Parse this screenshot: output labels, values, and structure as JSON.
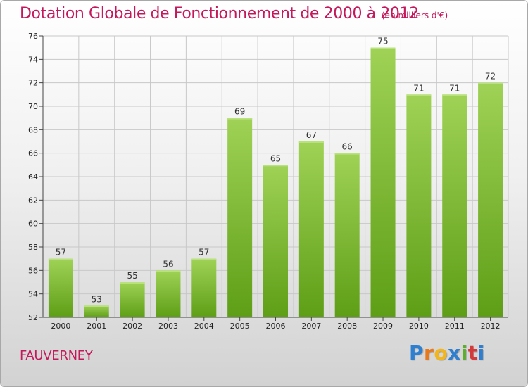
{
  "header": {
    "title": "Dotation Globale de Fonctionnement de 2000 à 2012",
    "unit": "(en milliers d'€)"
  },
  "footer": {
    "commune": "FAUVERNEY",
    "brand": [
      "P",
      "r",
      "o",
      "x",
      "i",
      "t",
      "i"
    ],
    "brand_colors": [
      "#2f7fd0",
      "#e8791b",
      "#f2b51c",
      "#2f7fd0",
      "#5cae2c",
      "#d43a3a",
      "#2f7fd0"
    ]
  },
  "colors": {
    "text_accent": "#c4185a",
    "bar_top": "#9fd256",
    "bar_bottom": "#5e9e16",
    "grid": "#c8c8c8"
  },
  "chart_data": {
    "type": "bar",
    "title": "Dotation Globale de Fonctionnement de 2000 à 2012",
    "xlabel": "",
    "ylabel": "(en milliers d'€)",
    "categories": [
      "2000",
      "2001",
      "2002",
      "2003",
      "2004",
      "2005",
      "2006",
      "2007",
      "2008",
      "2009",
      "2010",
      "2011",
      "2012"
    ],
    "values": [
      57,
      53,
      55,
      56,
      57,
      69,
      65,
      67,
      66,
      75,
      71,
      71,
      72
    ],
    "ylim": [
      52,
      76
    ],
    "yticks": [
      52,
      54,
      56,
      58,
      60,
      62,
      64,
      66,
      68,
      70,
      72,
      74,
      76
    ],
    "grid": true
  }
}
